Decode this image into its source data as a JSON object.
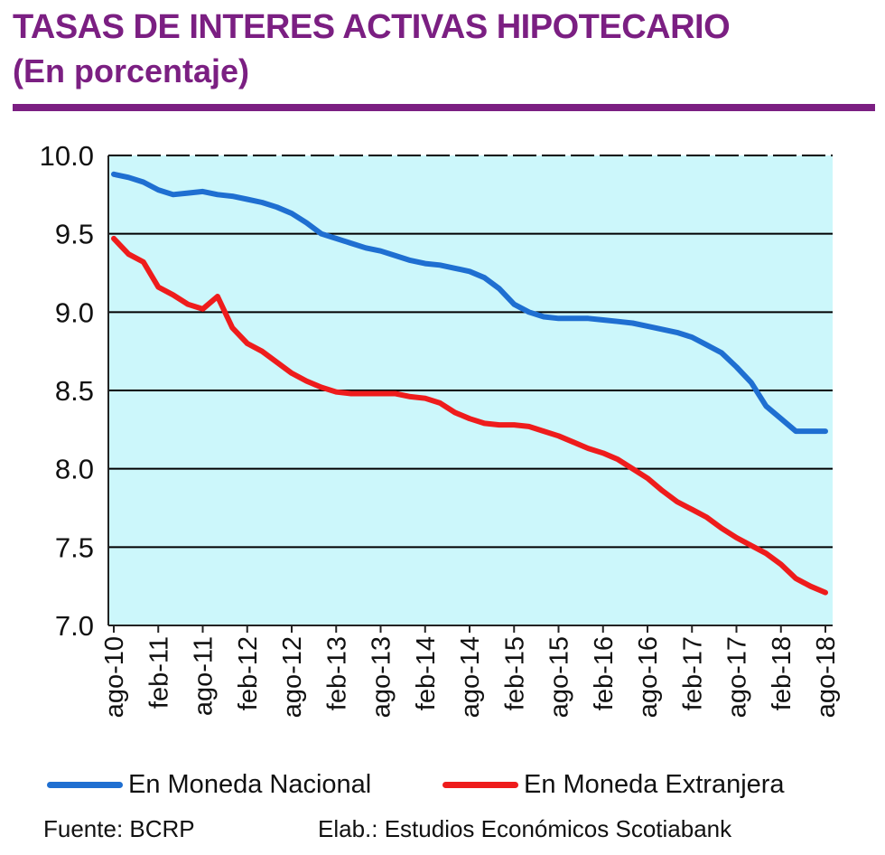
{
  "header": {
    "title": "TASAS DE INTERES ACTIVAS HIPOTECARIO",
    "subtitle": "(En porcentaje)"
  },
  "chart_data": {
    "type": "line",
    "title": "TASAS DE INTERES ACTIVAS HIPOTECARIO",
    "subtitle": "(En porcentaje)",
    "xlabel": "",
    "ylabel": "",
    "ylim": [
      7.0,
      10.0
    ],
    "yticks": [
      "10.0",
      "9.5",
      "9.0",
      "8.5",
      "8.0",
      "7.5",
      "7.0"
    ],
    "x_tick_labels": [
      "ago-10",
      "feb-11",
      "ago-11",
      "feb-12",
      "ago-12",
      "feb-13",
      "ago-13",
      "feb-14",
      "ago-14",
      "feb-15",
      "ago-15",
      "feb-16",
      "ago-16",
      "feb-17",
      "ago-17",
      "feb-18",
      "ago-18"
    ],
    "x": [
      "ago-10",
      "oct-10",
      "dic-10",
      "feb-11",
      "abr-11",
      "jun-11",
      "ago-11",
      "oct-11",
      "dic-11",
      "feb-12",
      "abr-12",
      "jun-12",
      "ago-12",
      "oct-12",
      "dic-12",
      "feb-13",
      "abr-13",
      "jun-13",
      "ago-13",
      "oct-13",
      "dic-13",
      "feb-14",
      "abr-14",
      "jun-14",
      "ago-14",
      "oct-14",
      "dic-14",
      "feb-15",
      "abr-15",
      "jun-15",
      "ago-15",
      "oct-15",
      "dic-15",
      "feb-16",
      "abr-16",
      "jun-16",
      "ago-16",
      "oct-16",
      "dic-16",
      "feb-17",
      "abr-17",
      "jun-17",
      "ago-17",
      "oct-17",
      "dic-17",
      "feb-18",
      "abr-18",
      "jun-18",
      "ago-18"
    ],
    "series": [
      {
        "name": "En Moneda Nacional",
        "color": "#1f6fd1",
        "values": [
          9.88,
          9.86,
          9.83,
          9.78,
          9.75,
          9.76,
          9.77,
          9.75,
          9.74,
          9.72,
          9.7,
          9.67,
          9.63,
          9.57,
          9.5,
          9.47,
          9.44,
          9.41,
          9.39,
          9.36,
          9.33,
          9.31,
          9.3,
          9.28,
          9.26,
          9.22,
          9.15,
          9.05,
          9.0,
          8.97,
          8.96,
          8.96,
          8.96,
          8.95,
          8.94,
          8.93,
          8.91,
          8.89,
          8.87,
          8.84,
          8.79,
          8.74,
          8.65,
          8.55,
          8.4,
          8.32,
          8.24,
          8.24,
          8.24
        ]
      },
      {
        "name": "En Moneda Extranjera",
        "color": "#ee1c1c",
        "values": [
          9.47,
          9.37,
          9.32,
          9.16,
          9.11,
          9.05,
          9.02,
          9.1,
          8.9,
          8.8,
          8.75,
          8.68,
          8.61,
          8.56,
          8.52,
          8.49,
          8.48,
          8.48,
          8.48,
          8.48,
          8.46,
          8.45,
          8.42,
          8.36,
          8.32,
          8.29,
          8.28,
          8.28,
          8.27,
          8.24,
          8.21,
          8.17,
          8.13,
          8.1,
          8.06,
          8.0,
          7.94,
          7.86,
          7.79,
          7.74,
          7.69,
          7.62,
          7.56,
          7.51,
          7.46,
          7.39,
          7.3,
          7.25,
          7.21
        ]
      }
    ],
    "legend": [
      "En Moneda Nacional",
      "En Moneda Extranjera"
    ],
    "grid": true,
    "legend_position": "bottom"
  },
  "footer": {
    "source": "Fuente: BCRP",
    "credit": "Elab.:  Estudios Económicos  Scotiabank"
  }
}
